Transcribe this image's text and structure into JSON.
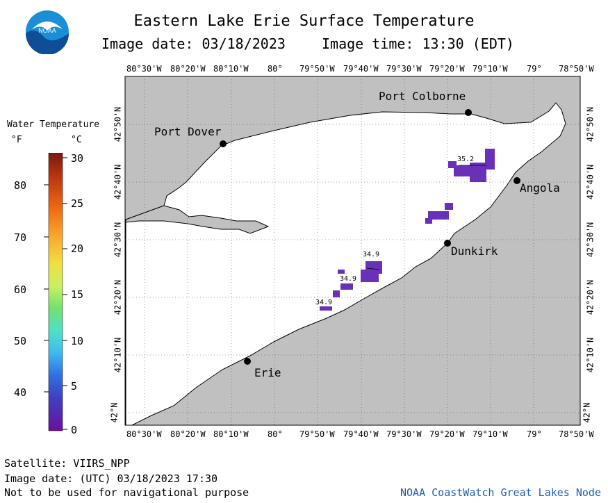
{
  "title": "Eastern Lake Erie Surface Temperature",
  "image_date_label": "Image date: 03/18/2023",
  "image_time_label": "Image time: 13:30 (EDT)",
  "lon_labels": [
    "80°30'W",
    "80°20'W",
    "80°10'W",
    "80°",
    "79°50'W",
    "79°40'W",
    "79°30'W",
    "79°20'W",
    "79°10'W",
    "79°",
    "78°50'W"
  ],
  "lat_labels": [
    "42°50'N",
    "42°40'N",
    "42°30'N",
    "42°20'N",
    "42°10'N",
    "42°N"
  ],
  "legend": {
    "title": "Water Temperature",
    "unit_f": "°F",
    "unit_c": "°C",
    "f_ticks": [
      "80",
      "70",
      "60",
      "50",
      "40"
    ],
    "c_ticks": [
      "30",
      "25",
      "20",
      "15",
      "10",
      "5",
      "0"
    ]
  },
  "places": {
    "port_colborne": "Port Colborne",
    "port_dover": "Port Dover",
    "angola": "Angola",
    "dunkirk": "Dunkirk",
    "erie": "Erie"
  },
  "temp_labels": [
    "35.2",
    "34.9",
    "34.9",
    "34.9"
  ],
  "footer": {
    "satellite": "Satellite: VIIRS_NPP",
    "utc_date": "Image date: (UTC) 03/18/2023  17:30",
    "disclaimer": "Not to be used for navigational purpose",
    "credit": "NOAA CoastWatch Great Lakes Node"
  },
  "colors": {
    "land": "#c0c0c0",
    "water": "#ffffff",
    "temp_patch": "#6a30b8",
    "credit": "#1f5fb0"
  }
}
